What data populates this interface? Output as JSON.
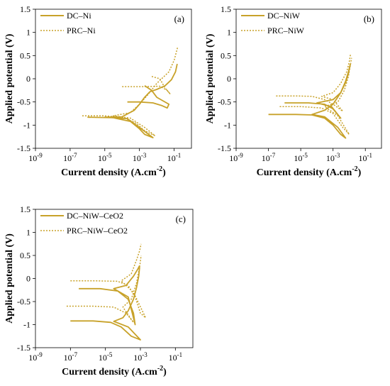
{
  "accent_color": "#C8A22A",
  "chart_data": [
    {
      "type": "line",
      "panel_label": "(a)",
      "xlabel_main": "Current density (A.cm",
      "xlabel_sup": "-2",
      "xlabel_close": ")",
      "ylabel": "Applied potential (V)",
      "xscale": "log",
      "xlim": [
        1e-09,
        1
      ],
      "ylim": [
        -1.5,
        1.5
      ],
      "xticks": [
        "10-9",
        "10-7",
        "10-5",
        "10-3",
        "10-1"
      ],
      "xtick_base": "10",
      "xtick_exps": [
        "-9",
        "-7",
        "-5",
        "-3",
        "-1"
      ],
      "yticks": [
        "1.5",
        "1",
        "0.5",
        "0",
        "-0.5",
        "-1",
        "-1.5"
      ],
      "ytick_values": [
        1.5,
        1,
        0.5,
        0,
        -0.5,
        -1,
        -1.5
      ],
      "legend_position": "top-left",
      "legend": [
        "DC–Ni",
        "PRC–Ni"
      ],
      "series": [
        {
          "name": "DC–Ni",
          "style": "solid",
          "points": [
            [
              1e-06,
              -0.83
            ],
            [
              3e-05,
              -0.84
            ],
            [
              0.0003,
              -0.92
            ],
            [
              0.001,
              -1.08
            ],
            [
              0.002,
              -1.2
            ],
            [
              0.006,
              -1.27
            ],
            [
              0.001,
              -1.05
            ],
            [
              0.0002,
              -0.86
            ],
            [
              1e-05,
              -0.83
            ],
            [
              0.0001,
              -0.82
            ],
            [
              0.0005,
              -0.68
            ],
            [
              0.001,
              -0.55
            ],
            [
              0.002,
              -0.4
            ],
            [
              0.004,
              -0.28
            ],
            [
              0.01,
              -0.23
            ],
            [
              0.03,
              -0.15
            ],
            [
              0.07,
              -0.02
            ],
            [
              0.12,
              0.15
            ],
            [
              0.15,
              0.32
            ]
          ]
        },
        {
          "name": "DC–Ni",
          "style": "solid",
          "points": [
            [
              0.0002,
              -0.5
            ],
            [
              0.001,
              -0.5
            ],
            [
              0.006,
              -0.52
            ],
            [
              0.02,
              -0.58
            ],
            [
              0.04,
              -0.63
            ],
            [
              0.05,
              -0.55
            ],
            [
              0.01,
              -0.4
            ],
            [
              0.005,
              -0.25
            ],
            [
              0.002,
              -0.15
            ]
          ]
        },
        {
          "name": "PRC–Ni",
          "style": "dotted",
          "points": [
            [
              5e-07,
              -0.8
            ],
            [
              1e-05,
              -0.8
            ],
            [
              0.0001,
              -0.83
            ],
            [
              0.0006,
              -0.95
            ],
            [
              0.002,
              -1.12
            ],
            [
              0.008,
              -1.23
            ],
            [
              0.002,
              -1.05
            ],
            [
              0.0003,
              -0.85
            ],
            [
              3e-05,
              -0.8
            ],
            [
              0.0003,
              -0.73
            ],
            [
              0.001,
              -0.55
            ],
            [
              0.003,
              -0.35
            ],
            [
              0.01,
              -0.1
            ],
            [
              0.05,
              0.15
            ],
            [
              0.1,
              0.4
            ],
            [
              0.16,
              0.68
            ]
          ]
        },
        {
          "name": "PRC–Ni",
          "style": "dotted",
          "points": [
            [
              0.0001,
              -0.17
            ],
            [
              0.002,
              -0.17
            ],
            [
              0.015,
              -0.16
            ],
            [
              0.04,
              -0.25
            ],
            [
              0.06,
              -0.33
            ],
            [
              0.03,
              -0.2
            ],
            [
              0.015,
              0.0
            ],
            [
              0.005,
              0.05
            ]
          ]
        }
      ]
    },
    {
      "type": "line",
      "panel_label": "(b)",
      "xlabel_main": "Current density (A.cm",
      "xlabel_sup": "-2",
      "xlabel_close": ")",
      "ylabel": "Applied potential (V)",
      "xscale": "log",
      "xlim": [
        1e-09,
        1
      ],
      "ylim": [
        -1.5,
        1.5
      ],
      "xticks": [
        "10-9",
        "10-7",
        "10-5",
        "10-3",
        "10-1"
      ],
      "xtick_base": "10",
      "xtick_exps": [
        "-9",
        "-7",
        "-5",
        "-3",
        "-1"
      ],
      "yticks": [
        "1.5",
        "1",
        "0.5",
        "0",
        "-0.5",
        "-1",
        "-1.5"
      ],
      "ytick_values": [
        1.5,
        1,
        0.5,
        0,
        -0.5,
        -1,
        -1.5
      ],
      "legend_position": "top-left",
      "legend": [
        "DC–NiW",
        "PRC–NiW"
      ],
      "series": [
        {
          "name": "DC–NiW",
          "style": "solid",
          "points": [
            [
              1e-07,
              -0.77
            ],
            [
              5e-06,
              -0.77
            ],
            [
              5e-05,
              -0.78
            ],
            [
              0.0003,
              -0.85
            ],
            [
              0.001,
              -1.0
            ],
            [
              0.003,
              -1.2
            ],
            [
              0.006,
              -1.28
            ],
            [
              0.002,
              -1.05
            ],
            [
              0.0003,
              -0.82
            ],
            [
              5e-05,
              -0.77
            ],
            [
              0.0003,
              -0.68
            ],
            [
              0.001,
              -0.55
            ],
            [
              0.003,
              -0.3
            ],
            [
              0.006,
              -0.05
            ],
            [
              0.009,
              0.15
            ],
            [
              0.012,
              0.32
            ]
          ]
        },
        {
          "name": "DC–NiW",
          "style": "solid",
          "points": [
            [
              1e-06,
              -0.52
            ],
            [
              3e-05,
              -0.52
            ],
            [
              0.0003,
              -0.55
            ],
            [
              0.001,
              -0.65
            ],
            [
              0.003,
              -0.85
            ],
            [
              0.0008,
              -0.6
            ],
            [
              0.0001,
              -0.52
            ],
            [
              0.001,
              -0.45
            ],
            [
              0.003,
              -0.3
            ],
            [
              0.006,
              -0.08
            ],
            [
              0.009,
              0.12
            ],
            [
              0.011,
              0.28
            ]
          ]
        },
        {
          "name": "PRC–NiW",
          "style": "dotted",
          "points": [
            [
              3e-07,
              -0.37
            ],
            [
              5e-06,
              -0.37
            ],
            [
              5e-05,
              -0.38
            ],
            [
              0.0003,
              -0.45
            ],
            [
              0.001,
              -0.55
            ],
            [
              0.004,
              -0.7
            ],
            [
              0.001,
              -0.45
            ],
            [
              0.0002,
              -0.38
            ],
            [
              0.001,
              -0.3
            ],
            [
              0.003,
              -0.1
            ],
            [
              0.007,
              0.15
            ],
            [
              0.01,
              0.35
            ],
            [
              0.012,
              0.52
            ]
          ]
        },
        {
          "name": "PRC–NiW",
          "style": "dotted",
          "points": [
            [
              5e-07,
              -0.6
            ],
            [
              1e-05,
              -0.6
            ],
            [
              0.0002,
              -0.63
            ],
            [
              0.001,
              -0.75
            ],
            [
              0.004,
              -1.05
            ],
            [
              0.01,
              -1.2
            ],
            [
              0.002,
              -0.8
            ],
            [
              0.0003,
              -0.6
            ],
            [
              0.002,
              -0.5
            ],
            [
              0.005,
              -0.25
            ],
            [
              0.009,
              0.05
            ],
            [
              0.012,
              0.3
            ],
            [
              0.014,
              0.45
            ]
          ]
        }
      ]
    },
    {
      "type": "line",
      "panel_label": "(c)",
      "xlabel_main": "Current density (A.cm",
      "xlabel_sup": "-2",
      "xlabel_close": ")",
      "ylabel": "Applied potential (V)",
      "xscale": "log",
      "xlim": [
        1e-09,
        1
      ],
      "ylim": [
        -1.5,
        1.5
      ],
      "xticks": [
        "10-9",
        "10-7",
        "10-5",
        "10-3",
        "10-1"
      ],
      "xtick_base": "10",
      "xtick_exps": [
        "-9",
        "-7",
        "-5",
        "-3",
        "-1"
      ],
      "yticks": [
        "1.5",
        "1",
        "0.5",
        "0",
        "-0.5",
        "-1",
        "-1.5"
      ],
      "ytick_values": [
        1.5,
        1,
        0.5,
        0,
        -0.5,
        -1,
        -1.5
      ],
      "legend_position": "top-left",
      "legend": [
        "DC–NiW–CeO2",
        "PRC–NiW–CeO2"
      ],
      "series": [
        {
          "name": "DC–NiW–CeO2",
          "style": "solid",
          "points": [
            [
              1e-07,
              -0.92
            ],
            [
              2e-06,
              -0.92
            ],
            [
              2e-05,
              -0.95
            ],
            [
              8e-05,
              -1.05
            ],
            [
              0.0003,
              -1.25
            ],
            [
              0.001,
              -1.33
            ],
            [
              0.0002,
              -1.05
            ],
            [
              3e-05,
              -0.93
            ],
            [
              0.0001,
              -0.85
            ],
            [
              0.0002,
              -0.7
            ],
            [
              0.0004,
              -0.45
            ],
            [
              0.0006,
              -0.2
            ],
            [
              0.0008,
              0.05
            ],
            [
              0.0009,
              0.25
            ]
          ]
        },
        {
          "name": "DC–NiW–CeO2",
          "style": "solid",
          "points": [
            [
              3e-07,
              -0.22
            ],
            [
              5e-06,
              -0.22
            ],
            [
              5e-05,
              -0.27
            ],
            [
              0.0002,
              -0.45
            ],
            [
              0.0004,
              -0.75
            ],
            [
              0.0005,
              -1.0
            ],
            [
              0.0002,
              -0.4
            ],
            [
              3e-05,
              -0.22
            ],
            [
              0.00015,
              -0.15
            ],
            [
              0.0004,
              0.05
            ],
            [
              0.0007,
              0.2
            ],
            [
              0.0009,
              0.28
            ]
          ]
        },
        {
          "name": "PRC–NiW–CeO2",
          "style": "dotted",
          "points": [
            [
              1e-07,
              -0.05
            ],
            [
              3e-06,
              -0.05
            ],
            [
              5e-05,
              -0.06
            ],
            [
              0.0002,
              -0.15
            ],
            [
              0.0005,
              -0.4
            ],
            [
              0.001,
              -0.75
            ],
            [
              0.002,
              -0.85
            ],
            [
              0.0004,
              -0.3
            ],
            [
              8e-05,
              -0.05
            ],
            [
              0.0003,
              0.1
            ],
            [
              0.0006,
              0.4
            ],
            [
              0.0009,
              0.6
            ],
            [
              0.0011,
              0.75
            ]
          ]
        },
        {
          "name": "PRC–NiW–CeO2",
          "style": "dotted",
          "points": [
            [
              6e-08,
              -0.6
            ],
            [
              2e-06,
              -0.6
            ],
            [
              3e-05,
              -0.62
            ],
            [
              0.00015,
              -0.75
            ],
            [
              0.0004,
              -0.95
            ],
            [
              0.0001,
              -0.62
            ],
            [
              0.0003,
              -0.45
            ],
            [
              0.0006,
              -0.1
            ],
            [
              0.0009,
              0.25
            ],
            [
              0.0011,
              0.5
            ]
          ]
        }
      ]
    }
  ]
}
